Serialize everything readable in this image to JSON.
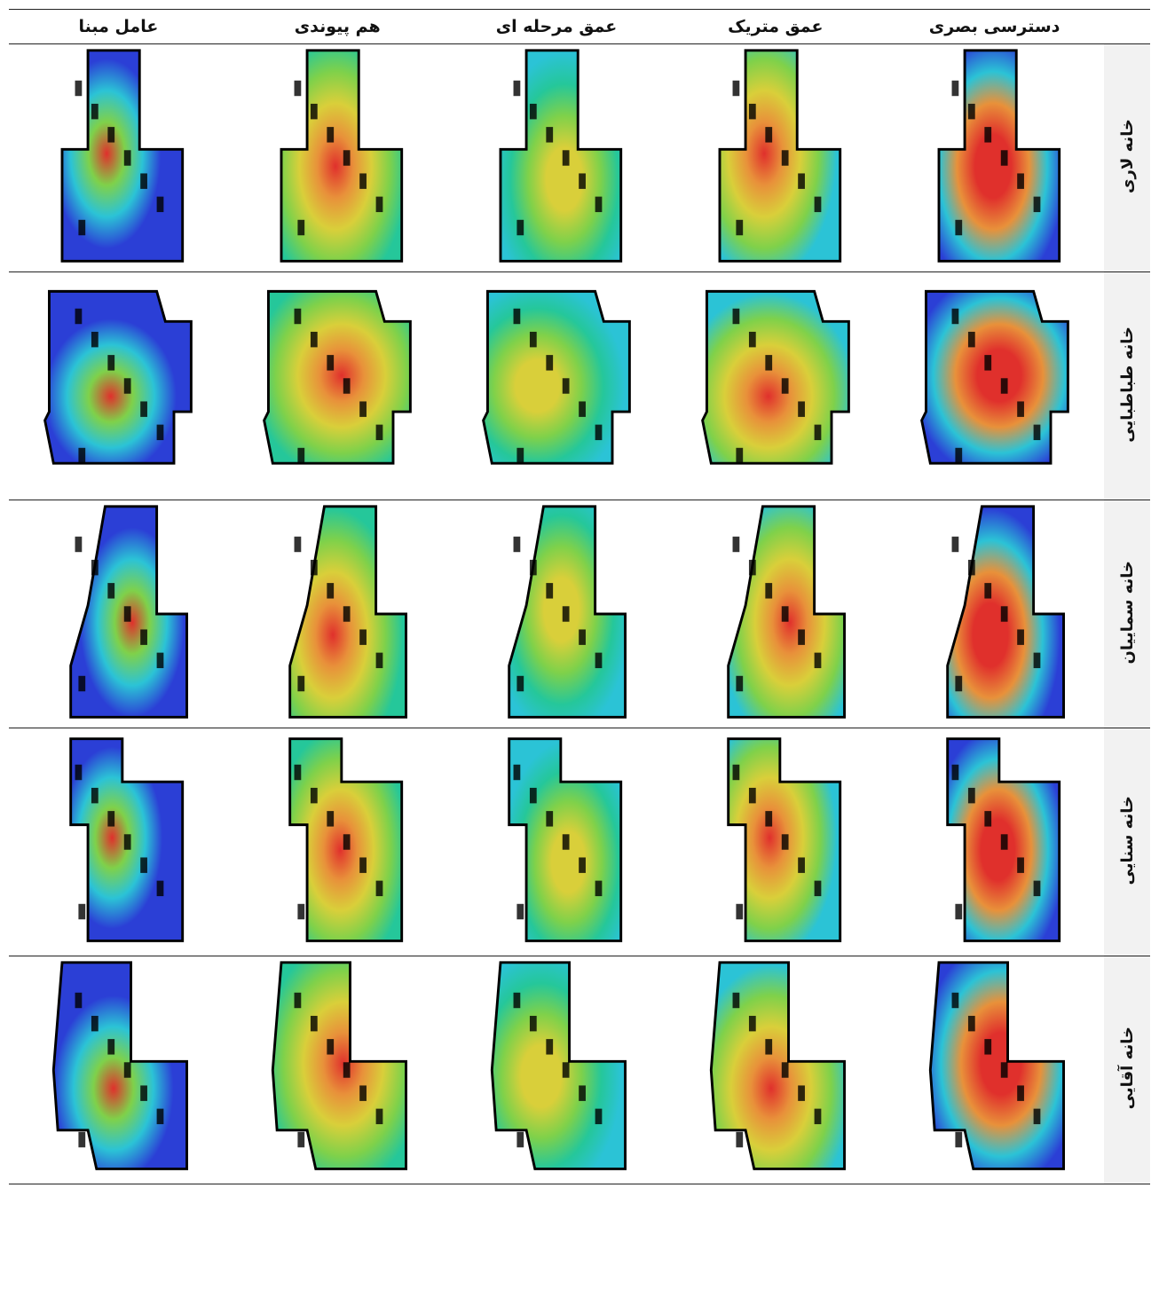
{
  "columns": [
    {
      "key": "agent",
      "label": "عامل مبنا"
    },
    {
      "key": "integration",
      "label": "هم پیوندی"
    },
    {
      "key": "step",
      "label": "عمق مرحله ای"
    },
    {
      "key": "metric",
      "label": "عمق متریک"
    },
    {
      "key": "visual",
      "label": "دسترسی بصری"
    }
  ],
  "rows": [
    {
      "label": "خانه لاری"
    },
    {
      "label": "خانه طباطبایی"
    },
    {
      "label": "خانه سماییان"
    },
    {
      "label": "خانه سنایی"
    },
    {
      "label": "خانه آقایی"
    }
  ],
  "colors": {
    "blue": "#2b3fd6",
    "cyan": "#2bc3d6",
    "teal": "#25c79a",
    "green": "#7fd14a",
    "yellow": "#d9cf3a",
    "orange": "#e8913a",
    "red": "#e0302c",
    "wall": "#000000"
  }
}
